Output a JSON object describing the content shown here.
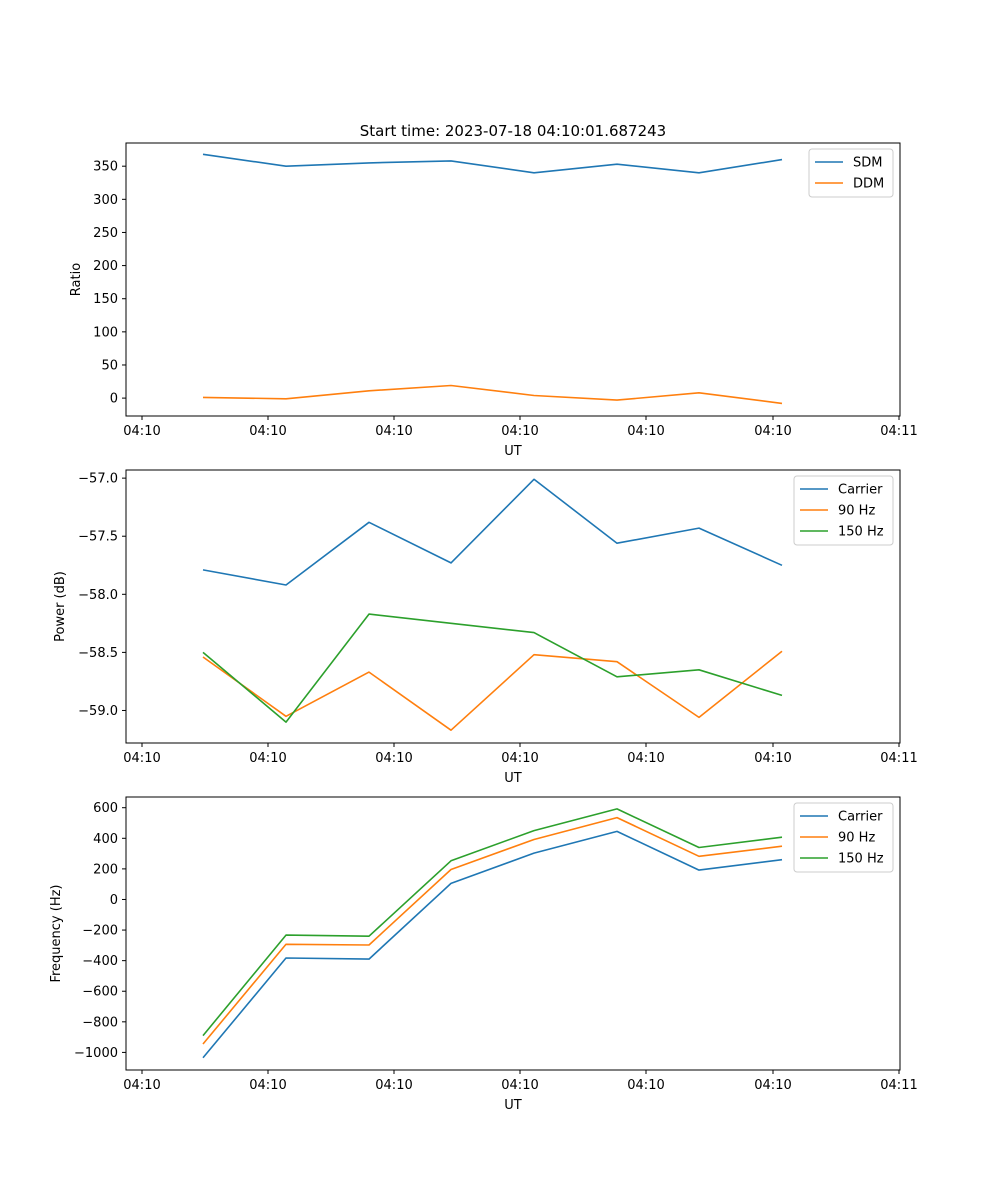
{
  "title": "Start time: 2023-07-18 04:10:01.687243",
  "chart_data": [
    {
      "type": "line",
      "xlabel": "UT",
      "ylabel": "Ratio",
      "x_tick_labels": [
        "04:10",
        "04:10",
        "04:10",
        "04:10",
        "04:10",
        "04:10",
        "04:11"
      ],
      "y_ticks": [
        0,
        50,
        100,
        150,
        200,
        250,
        300,
        350
      ],
      "ylim": [
        -27,
        385
      ],
      "grid": false,
      "legend_position": "top-right",
      "x": [
        1,
        2,
        3,
        4,
        5,
        6,
        7,
        8
      ],
      "series": [
        {
          "name": "SDM",
          "color": "#1f77b4",
          "values": [
            368,
            350,
            355,
            358,
            340,
            353,
            340,
            360
          ]
        },
        {
          "name": "DDM",
          "color": "#ff7f0e",
          "values": [
            1,
            -1,
            11,
            19,
            4,
            -3,
            8,
            -8
          ]
        }
      ]
    },
    {
      "type": "line",
      "xlabel": "UT",
      "ylabel": "Power (dB)",
      "x_tick_labels": [
        "04:10",
        "04:10",
        "04:10",
        "04:10",
        "04:10",
        "04:10",
        "04:11"
      ],
      "y_ticks": [
        -59.0,
        -58.5,
        -58.0,
        -57.5,
        -57.0
      ],
      "ylim": [
        -59.28,
        -56.93
      ],
      "grid": false,
      "legend_position": "top-right",
      "x": [
        1,
        2,
        3,
        4,
        5,
        6,
        7,
        8
      ],
      "series": [
        {
          "name": "Carrier",
          "color": "#1f77b4",
          "values": [
            -57.79,
            -57.92,
            -57.38,
            -57.73,
            -57.01,
            -57.56,
            -57.43,
            -57.75
          ]
        },
        {
          "name": "90 Hz",
          "color": "#ff7f0e",
          "values": [
            -58.54,
            -59.05,
            -58.67,
            -59.17,
            -58.52,
            -58.58,
            -59.06,
            -58.49
          ]
        },
        {
          "name": "150 Hz",
          "color": "#2ca02c",
          "values": [
            -58.5,
            -59.1,
            -58.17,
            -58.25,
            -58.33,
            -58.71,
            -58.65,
            -58.87
          ]
        }
      ]
    },
    {
      "type": "line",
      "xlabel": "UT",
      "ylabel": "Frequency (Hz)",
      "x_tick_labels": [
        "04:10",
        "04:10",
        "04:10",
        "04:10",
        "04:10",
        "04:10",
        "04:11"
      ],
      "y_ticks": [
        -1000,
        -800,
        -600,
        -400,
        -200,
        0,
        200,
        400,
        600
      ],
      "ylim": [
        -1115,
        670
      ],
      "grid": false,
      "legend_position": "top-right",
      "x": [
        1,
        2,
        3,
        4,
        5,
        6,
        7,
        8
      ],
      "series": [
        {
          "name": "Carrier",
          "color": "#1f77b4",
          "values": [
            -1035,
            -383,
            -390,
            105,
            303,
            445,
            192,
            260
          ]
        },
        {
          "name": "90 Hz",
          "color": "#ff7f0e",
          "values": [
            -945,
            -293,
            -298,
            196,
            392,
            535,
            282,
            348
          ]
        },
        {
          "name": "150 Hz",
          "color": "#2ca02c",
          "values": [
            -890,
            -233,
            -240,
            253,
            450,
            592,
            340,
            407
          ]
        }
      ]
    }
  ]
}
